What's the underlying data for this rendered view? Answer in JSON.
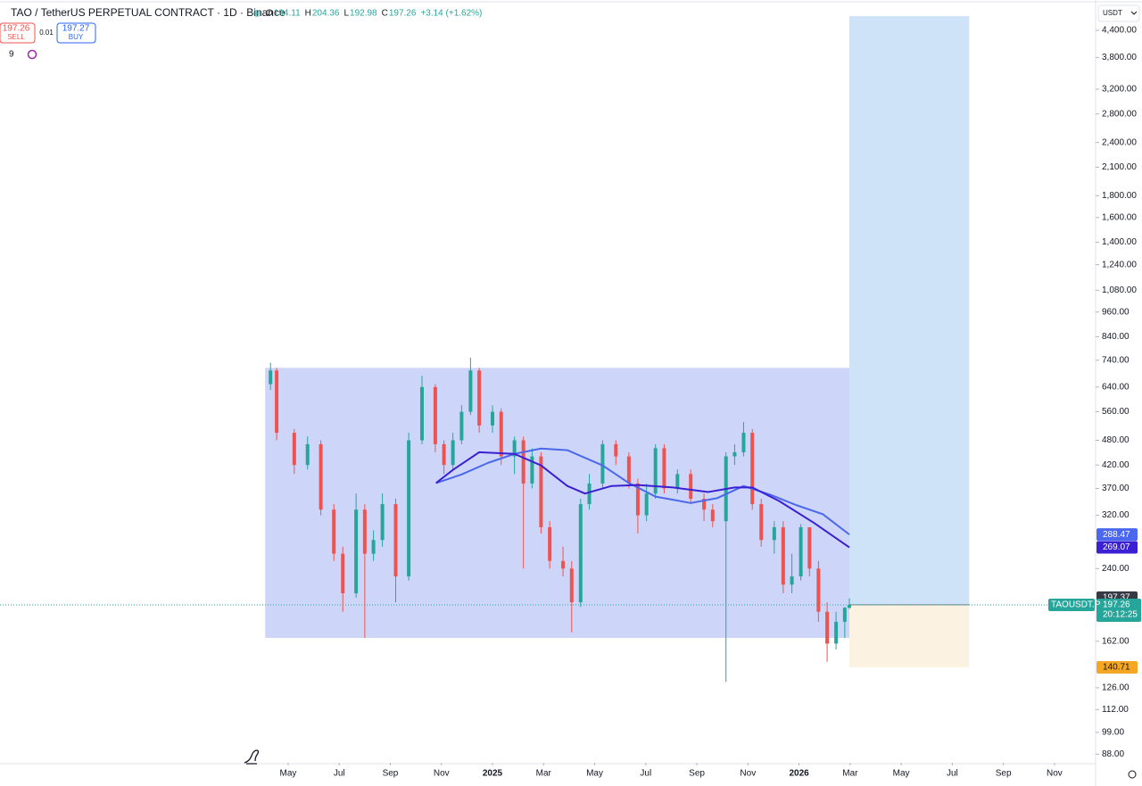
{
  "chart_data": {
    "type": "candlestick",
    "title": "TAO / TetherUS PERPETUAL CONTRACT · 1D · Binance",
    "ohlc_labels": [
      "O",
      "H",
      "L",
      "C"
    ],
    "change": "+3.14 (+1.62%)",
    "sell": {
      "price": "197.26",
      "label": "SELL"
    },
    "buy": {
      "price": "197.27",
      "label": "BUY"
    },
    "spread": "0.01",
    "indicator_count": "9",
    "currency": "USDT",
    "symbol_label": "TAOUSDT.P",
    "countdown": "20:12:25",
    "marker_price": 197.37,
    "log_scale": true,
    "up_color": "#26a69a",
    "down_color": "#ef5350",
    "x": [
      -0.69,
      -0.45,
      0.24,
      0.76,
      1.28,
      1.79,
      2.14,
      2.66,
      3.0,
      3.34,
      3.69,
      4.21,
      4.72,
      5.24,
      5.76,
      6.1,
      6.45,
      6.79,
      7.14,
      7.48,
      8.0,
      8.34,
      8.86,
      9.21,
      9.55,
      9.9,
      10.24,
      10.76,
      11.1,
      11.45,
      11.79,
      12.31,
      12.83,
      13.34,
      13.69,
      14.03,
      14.38,
      14.72,
      15.24,
      15.76,
      16.28,
      16.62,
      17.14,
      17.48,
      17.83,
      18.17,
      18.52,
      19.03,
      19.38,
      19.72,
      20.07,
      20.41,
      20.76,
      21.1,
      21.45,
      21.79,
      21.97
    ],
    "open": [
      650,
      700,
      500,
      420,
      470,
      330,
      260,
      210,
      330,
      260,
      280,
      340,
      230,
      480,
      640,
      470,
      420,
      480,
      560,
      700,
      520,
      560,
      440,
      480,
      380,
      440,
      300,
      250,
      240,
      200,
      340,
      380,
      470,
      440,
      380,
      320,
      360,
      460,
      370,
      400,
      350,
      330,
      310,
      440,
      450,
      500,
      340,
      280,
      300,
      220,
      230,
      300,
      240,
      190,
      160,
      180,
      194.11
    ],
    "high": [
      730,
      710,
      510,
      490,
      480,
      340,
      270,
      360,
      340,
      295,
      360,
      350,
      500,
      680,
      650,
      480,
      500,
      580,
      750,
      710,
      580,
      570,
      490,
      490,
      460,
      450,
      310,
      270,
      250,
      350,
      400,
      480,
      480,
      450,
      390,
      380,
      470,
      470,
      410,
      410,
      360,
      340,
      450,
      470,
      530,
      510,
      350,
      310,
      310,
      260,
      305,
      300,
      250,
      200,
      190,
      195,
      204.36
    ],
    "low": [
      630,
      480,
      400,
      410,
      320,
      250,
      190,
      205,
      165,
      250,
      270,
      200,
      225,
      470,
      450,
      400,
      410,
      470,
      550,
      500,
      500,
      420,
      400,
      240,
      370,
      290,
      240,
      230,
      170,
      195,
      330,
      370,
      420,
      370,
      290,
      310,
      350,
      360,
      360,
      340,
      310,
      300,
      130,
      420,
      440,
      330,
      270,
      260,
      210,
      210,
      225,
      230,
      180,
      145,
      155,
      165,
      192.98
    ],
    "close": [
      700,
      500,
      420,
      470,
      330,
      260,
      210,
      330,
      260,
      280,
      340,
      230,
      480,
      640,
      470,
      420,
      480,
      560,
      700,
      520,
      560,
      440,
      480,
      380,
      440,
      300,
      250,
      240,
      200,
      340,
      380,
      470,
      440,
      380,
      320,
      360,
      460,
      370,
      400,
      350,
      330,
      310,
      440,
      450,
      500,
      340,
      280,
      300,
      220,
      230,
      300,
      240,
      190,
      160,
      180,
      194.11,
      197.26
    ],
    "moving_averages": [
      {
        "color": "#4a67ee",
        "x": [
          5.79,
          6.79,
          7.83,
          8.86,
          9.9,
          10.93,
          12.31,
          13.34,
          14.38,
          15.76,
          16.79,
          17.83,
          18.86,
          19.9,
          20.93,
          21.97
        ],
        "values": [
          381,
          399,
          425,
          446,
          459,
          455,
          419,
          381,
          354,
          342,
          351,
          375,
          358,
          338,
          322,
          288.47
        ]
      },
      {
        "color": "#3b1fd2",
        "x": [
          5.79,
          6.45,
          7.48,
          8.86,
          9.9,
          10.93,
          11.62,
          12.66,
          13.69,
          15.07,
          16.45,
          17.48,
          18.17,
          19.21,
          20.59,
          21.97
        ],
        "values": [
          381,
          409,
          450,
          446,
          419,
          375,
          360,
          375,
          377,
          372,
          363,
          372,
          372,
          346,
          307,
          269.07
        ]
      }
    ],
    "range_box": {
      "x": [
        -0.9,
        21.97
      ],
      "y": [
        165,
        710
      ],
      "color": "#cdd6f8"
    },
    "position": {
      "x": [
        21.97,
        26.66
      ],
      "entry": 197.3,
      "target": 4750,
      "stop": 140.71,
      "target_color": "#cfe3f8",
      "stop_color": "#fbf2e1"
    },
    "xlim": [
      -11.28,
      31.61
    ],
    "xticks": [
      {
        "value": 0,
        "label": "May"
      },
      {
        "value": 2,
        "label": "Jul"
      },
      {
        "value": 4,
        "label": "Sep"
      },
      {
        "value": 6,
        "label": "Nov"
      },
      {
        "value": 8,
        "label": "2025"
      },
      {
        "value": 10,
        "label": "Mar"
      },
      {
        "value": 12,
        "label": "May"
      },
      {
        "value": 14,
        "label": "Jul"
      },
      {
        "value": 16,
        "label": "Sep"
      },
      {
        "value": 18,
        "label": "Nov"
      },
      {
        "value": 20,
        "label": "2026"
      },
      {
        "value": 22,
        "label": "Mar"
      },
      {
        "value": 24,
        "label": "May"
      },
      {
        "value": 26,
        "label": "Jul"
      },
      {
        "value": 28,
        "label": "Sep"
      },
      {
        "value": 30,
        "label": "Nov"
      }
    ],
    "ylim": [
      84,
      5060
    ],
    "yticks": [
      {
        "value": 4400,
        "label": "4,400.00"
      },
      {
        "value": 3800,
        "label": "3,800.00"
      },
      {
        "value": 3200,
        "label": "3,200.00"
      },
      {
        "value": 2800,
        "label": "2,800.00"
      },
      {
        "value": 2400,
        "label": "2,400.00"
      },
      {
        "value": 2100,
        "label": "2,100.00"
      },
      {
        "value": 1800,
        "label": "1,800.00"
      },
      {
        "value": 1600,
        "label": "1,600.00"
      },
      {
        "value": 1400,
        "label": "1,400.00"
      },
      {
        "value": 1240,
        "label": "1,240.00"
      },
      {
        "value": 1080,
        "label": "1,080.00"
      },
      {
        "value": 960,
        "label": "960.00"
      },
      {
        "value": 840,
        "label": "840.00"
      },
      {
        "value": 740,
        "label": "740.00"
      },
      {
        "value": 640,
        "label": "640.00"
      },
      {
        "value": 560,
        "label": "560.00"
      },
      {
        "value": 480,
        "label": "480.00"
      },
      {
        "value": 420,
        "label": "420.00"
      },
      {
        "value": 370,
        "label": "370.00"
      },
      {
        "value": 320,
        "label": "320.00"
      },
      {
        "value": 240,
        "label": "240.00"
      },
      {
        "value": 162,
        "label": "162.00"
      },
      {
        "value": 126,
        "label": "126.00"
      },
      {
        "value": 112,
        "label": "112.00"
      },
      {
        "value": 99,
        "label": "99.00"
      },
      {
        "value": 88,
        "label": "88.00"
      }
    ]
  }
}
